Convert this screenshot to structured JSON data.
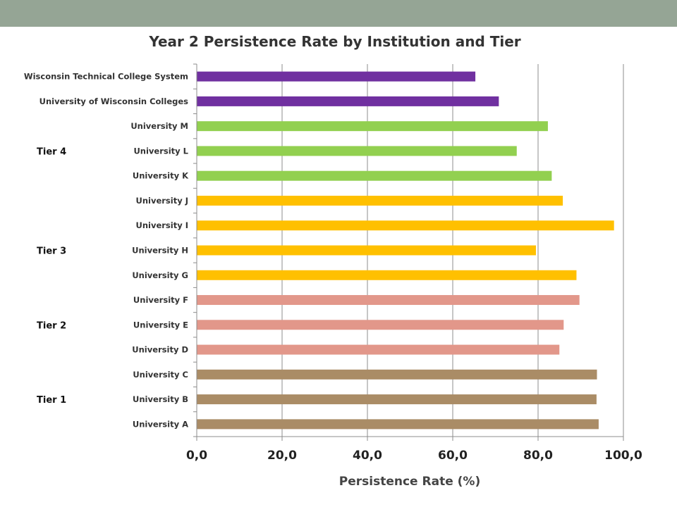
{
  "chart_data": {
    "type": "bar",
    "orientation": "horizontal",
    "title": "Year 2 Persistence Rate by Institution and Tier",
    "xlabel": "Persistence Rate (%)",
    "ylabel": "",
    "xlim": [
      0,
      100
    ],
    "xticks": [
      "0,0",
      "20,0",
      "40,0",
      "60,0",
      "80,0",
      "100,0"
    ],
    "grid": "vertical",
    "categories": [
      "Wisconsin Technical College System",
      "University of Wisconsin Colleges",
      "University M",
      "University L",
      "University K",
      "University J",
      "University I",
      "University H",
      "University G",
      "University F",
      "University E",
      "University D",
      "University C",
      "University B",
      "University A"
    ],
    "values": [
      65.3,
      70.8,
      82.3,
      75.0,
      83.2,
      85.8,
      97.8,
      79.5,
      89.0,
      89.7,
      86.0,
      85.0,
      93.8,
      93.7,
      94.2
    ],
    "bar_colors": [
      "#7030a0",
      "#7030a0",
      "#92d050",
      "#92d050",
      "#92d050",
      "#ffc000",
      "#ffc000",
      "#ffc000",
      "#ffc000",
      "#e2978a",
      "#e2978a",
      "#e2978a",
      "#aa8c66",
      "#aa8c66",
      "#aa8c66"
    ],
    "tier_labels": [
      {
        "label": "Tier 4",
        "category_index": 3
      },
      {
        "label": "Tier 3",
        "category_index": 7
      },
      {
        "label": "Tier 2",
        "category_index": 10
      },
      {
        "label": "Tier 1",
        "category_index": 13
      }
    ]
  },
  "colors": {
    "header_bar": "#95a595",
    "gridline": "#8c8c8c"
  }
}
